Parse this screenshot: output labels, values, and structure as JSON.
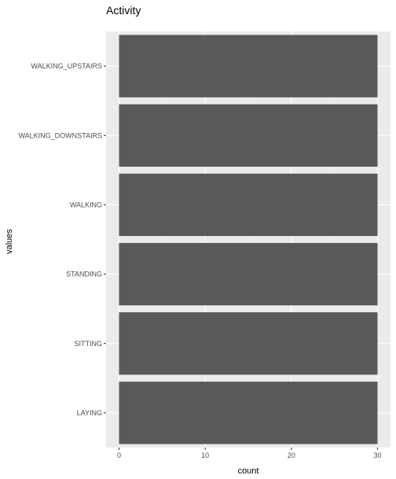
{
  "chart_data": {
    "type": "bar",
    "orientation": "horizontal",
    "title": "Activity",
    "xlabel": "count",
    "ylabel": "values",
    "categories": [
      "WALKING_UPSTAIRS",
      "WALKING_DOWNSTAIRS",
      "WALKING",
      "STANDING",
      "SITTING",
      "LAYING"
    ],
    "values": [
      30,
      30,
      30,
      30,
      30,
      30
    ],
    "xlim": [
      -1.5,
      31.5
    ],
    "xticks": [
      0,
      10,
      20,
      30
    ],
    "grid": true,
    "legend": "none",
    "colors": {
      "panel_bg": "#ebebeb",
      "grid_major": "#ffffff",
      "grid_minor": "#f4f4f4",
      "bar_fill": "#595959"
    }
  }
}
